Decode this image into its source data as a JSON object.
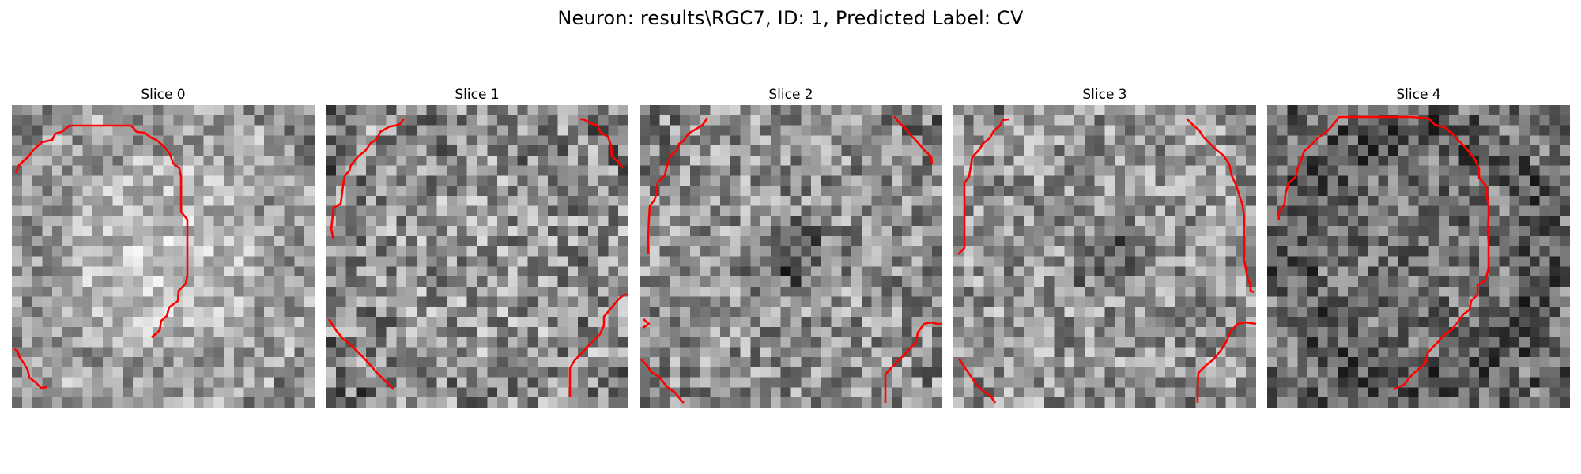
{
  "figure": {
    "title": "Neuron: results\\RGC7, ID: 1, Predicted Label: CV"
  },
  "panels": [
    {
      "title": "Slice 0",
      "image": "grayscale-slice-0",
      "overlay": "red-contour"
    },
    {
      "title": "Slice 1",
      "image": "grayscale-slice-1",
      "overlay": "red-contour"
    },
    {
      "title": "Slice 2",
      "image": "grayscale-slice-2",
      "overlay": "red-contour"
    },
    {
      "title": "Slice 3",
      "image": "grayscale-slice-3",
      "overlay": "red-contour"
    },
    {
      "title": "Slice 4",
      "image": "grayscale-slice-4",
      "overlay": "red-contour"
    }
  ],
  "colors": {
    "contour": "#ff0000",
    "background": "#ffffff"
  }
}
